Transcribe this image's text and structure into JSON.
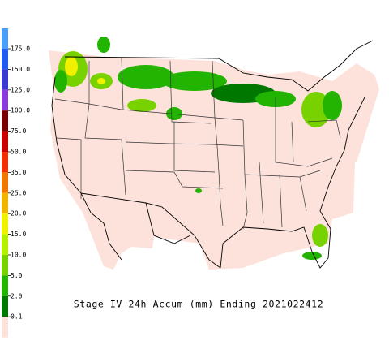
{
  "title": "Stage IV 24h Accum (mm) Ending 2021022412",
  "legend": [
    {
      "label": "175.0",
      "color": "#1f5cf0"
    },
    {
      "label": "150.0",
      "color": "#3a3ad0"
    },
    {
      "label": "125.0",
      "color": "#8a3cd8"
    },
    {
      "label": "100.0",
      "color": "#7a0000"
    },
    {
      "label": "75.0",
      "color": "#c80000"
    },
    {
      "label": "50.0",
      "color": "#f03000"
    },
    {
      "label": "35.0",
      "color": "#f07800"
    },
    {
      "label": "25.0",
      "color": "#f0b400"
    },
    {
      "label": "20.0",
      "color": "#f0f000"
    },
    {
      "label": "15.0",
      "color": "#b4f000"
    },
    {
      "label": "10.0",
      "color": "#78d200"
    },
    {
      "label": "5.0",
      "color": "#22b400"
    },
    {
      "label": "2.0",
      "color": "#007800"
    },
    {
      "label": "0.1",
      "color": "#fde2dc"
    }
  ]
}
